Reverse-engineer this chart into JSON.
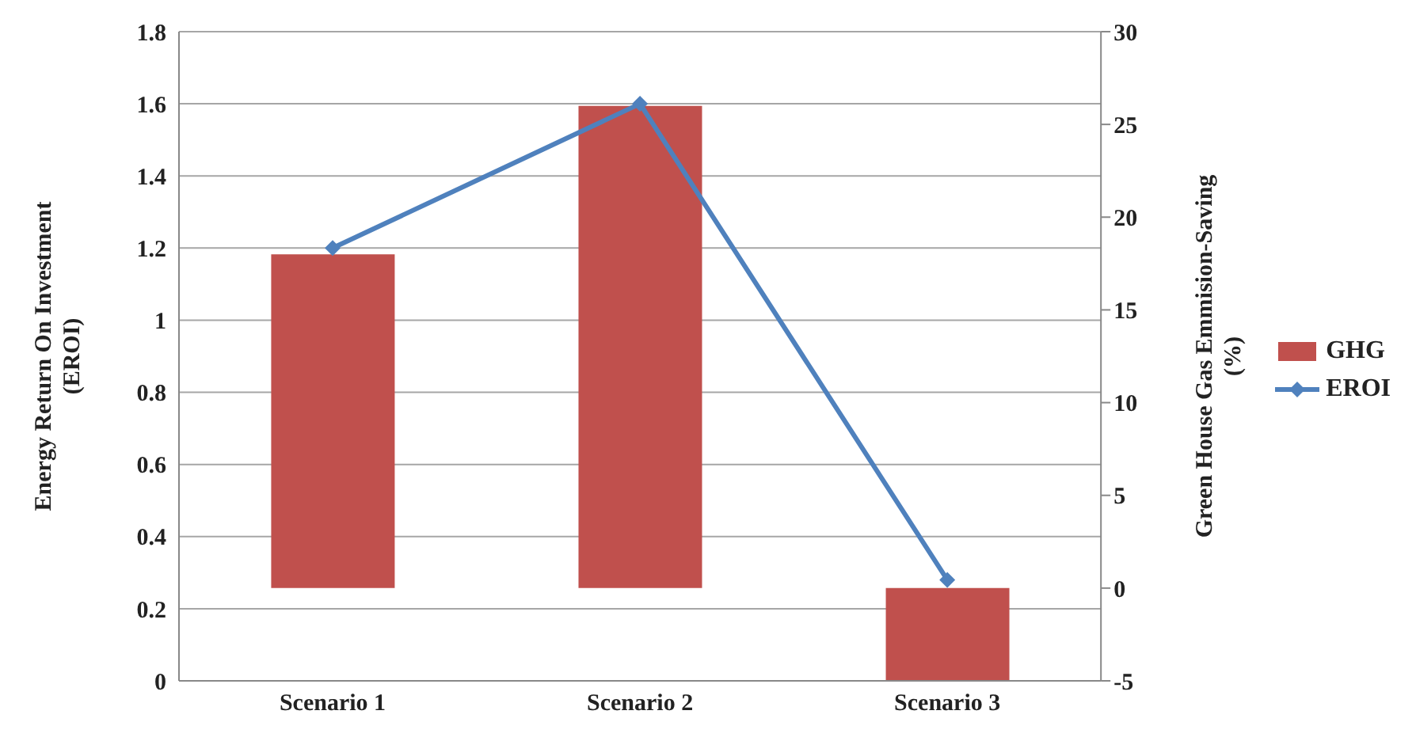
{
  "chart_data": {
    "type": "bar",
    "categories": [
      "Scenario 1",
      "Scenario 2",
      "Scenario 3"
    ],
    "ylabel": "Energy Return On Investment (EROI)",
    "y2label": "Green House Gas Emmision-Saving (%)",
    "series": [
      {
        "name": "GHG",
        "axis": "y2",
        "color": "#c0504d",
        "values": [
          18,
          26,
          -5
        ]
      },
      {
        "name": "EROI",
        "type": "line",
        "axis": "y",
        "color": "#4f81bd",
        "values": [
          1.2,
          1.6,
          0.28
        ],
        "marker": "diamond"
      }
    ],
    "ylim": [
      0,
      1.8
    ],
    "yticks": [
      0,
      0.2,
      0.4,
      0.6,
      0.8,
      1,
      1.2,
      1.4,
      1.6,
      1.8
    ],
    "y2lim": [
      -5,
      30
    ],
    "y2ticks": [
      -5,
      0,
      5,
      10,
      15,
      20,
      25,
      30
    ],
    "grid": "y",
    "legend": "right"
  }
}
